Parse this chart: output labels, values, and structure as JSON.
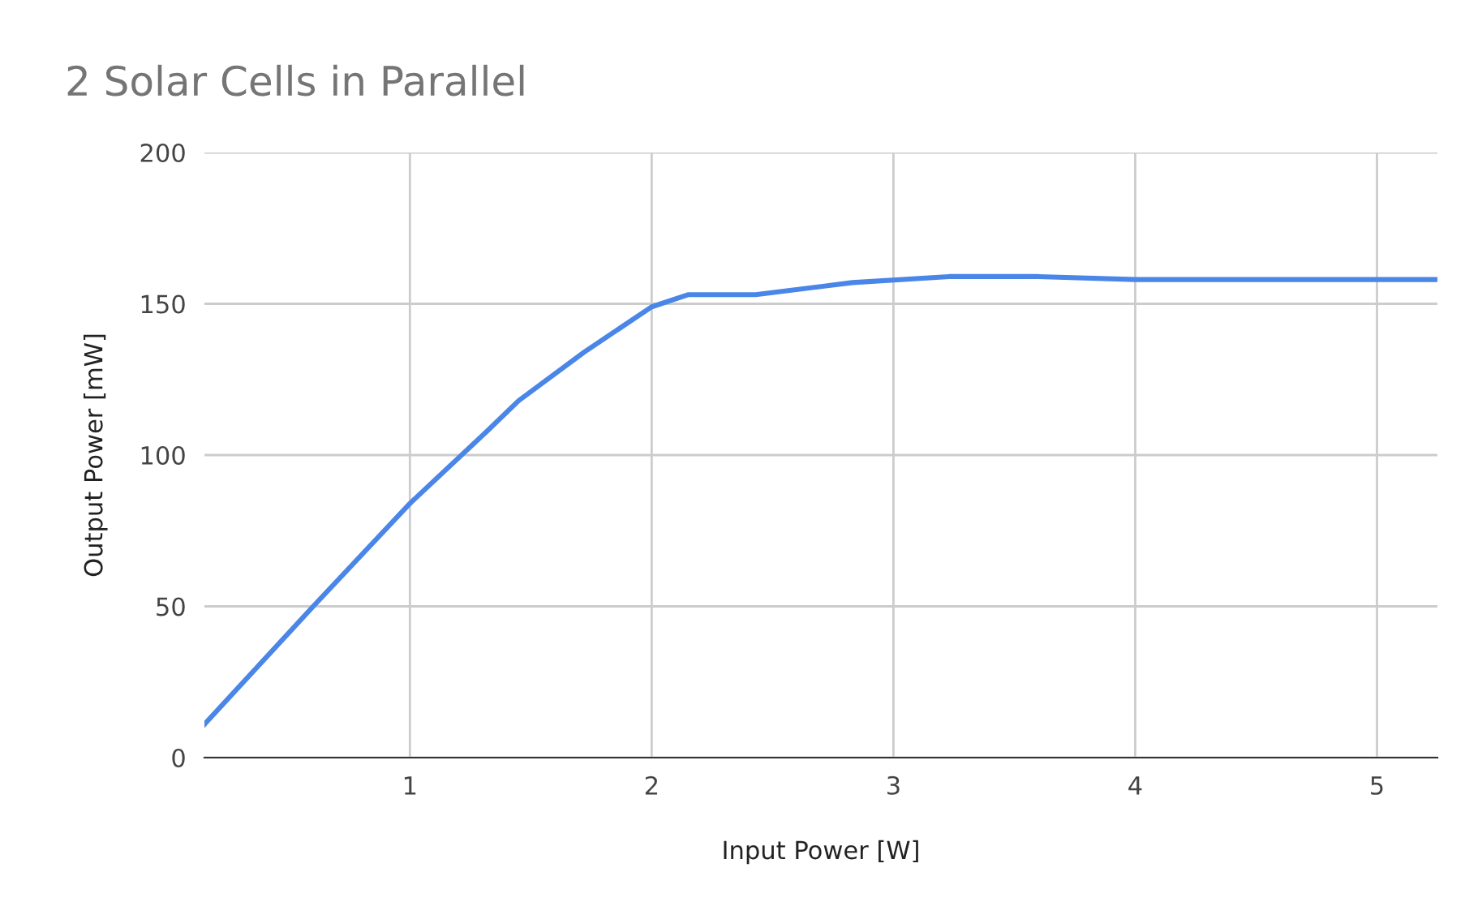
{
  "chart_data": {
    "type": "line",
    "title": "2 Solar Cells in Parallel",
    "xlabel": "Input Power [W]",
    "ylabel": "Output Power [mW]",
    "x": [
      0.15,
      0.6,
      1,
      1.32,
      1.45,
      1.72,
      2,
      2.15,
      2.43,
      2.83,
      3.23,
      3.6,
      4,
      5.25
    ],
    "series": [
      {
        "color": "#4a86e8",
        "values": [
          11,
          50,
          84,
          108,
          118,
          134,
          149,
          153,
          153,
          157,
          159,
          159,
          158,
          158
        ]
      }
    ],
    "xlim": [
      0.15,
      5.25
    ],
    "xticks": [
      1,
      2,
      3,
      4,
      5
    ],
    "ylim": [
      0,
      200
    ],
    "yticks": [
      0,
      50,
      100,
      150,
      200
    ],
    "grid": true,
    "marker": "none",
    "line_style": "solid",
    "legend": false
  }
}
